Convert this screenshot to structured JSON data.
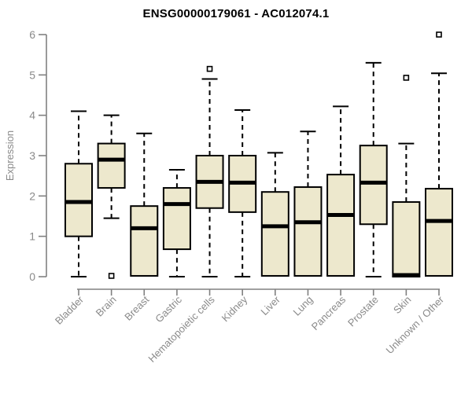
{
  "chart_data": {
    "type": "boxplot",
    "title": "ENSG00000179061 - AC012074.1",
    "ylabel": "Expression",
    "ylim": [
      0,
      6
    ],
    "yticks": [
      0,
      1,
      2,
      3,
      4,
      5,
      6
    ],
    "grid": false,
    "categories": [
      "Bladder",
      "Brain",
      "Breast",
      "Gastric",
      "Hematopoietic cells",
      "Kidney",
      "Liver",
      "Lung",
      "Pancreas",
      "Prostate",
      "Skin",
      "Unknown / Other"
    ],
    "series": [
      {
        "name": "Bladder",
        "low": 0,
        "q1": 1.0,
        "median": 1.85,
        "q3": 2.8,
        "high": 4.1,
        "outliers": []
      },
      {
        "name": "Brain",
        "low": 1.45,
        "q1": 2.2,
        "median": 2.9,
        "q3": 3.3,
        "high": 4.0,
        "outliers": [
          0.02
        ]
      },
      {
        "name": "Breast",
        "low": 0.02,
        "q1": 0.02,
        "median": 1.2,
        "q3": 1.75,
        "high": 3.55,
        "outliers": []
      },
      {
        "name": "Gastric",
        "low": 0,
        "q1": 0.68,
        "median": 1.8,
        "q3": 2.2,
        "high": 2.65,
        "outliers": []
      },
      {
        "name": "Hematopoietic cells",
        "low": 0,
        "q1": 1.7,
        "median": 2.35,
        "q3": 3.0,
        "high": 4.9,
        "outliers": [
          5.15
        ]
      },
      {
        "name": "Kidney",
        "low": 0,
        "q1": 1.6,
        "median": 2.33,
        "q3": 3.0,
        "high": 4.13,
        "outliers": []
      },
      {
        "name": "Liver",
        "low": 0.02,
        "q1": 0.02,
        "median": 1.25,
        "q3": 2.1,
        "high": 3.07,
        "outliers": []
      },
      {
        "name": "Lung",
        "low": 0.02,
        "q1": 0.02,
        "median": 1.35,
        "q3": 2.22,
        "high": 3.6,
        "outliers": []
      },
      {
        "name": "Pancreas",
        "low": 0.02,
        "q1": 0.02,
        "median": 1.53,
        "q3": 2.53,
        "high": 4.22,
        "outliers": []
      },
      {
        "name": "Prostate",
        "low": 0,
        "q1": 1.3,
        "median": 2.33,
        "q3": 3.25,
        "high": 5.3,
        "outliers": []
      },
      {
        "name": "Skin",
        "low": 0,
        "q1": 0,
        "median": 0.04,
        "q3": 1.85,
        "high": 3.3,
        "outliers": [
          4.93
        ]
      },
      {
        "name": "Unknown / Other",
        "low": 0.02,
        "q1": 0.02,
        "median": 1.38,
        "q3": 2.18,
        "high": 5.04,
        "outliers": [
          6.0
        ]
      }
    ],
    "colors": {
      "box_fill": "#EDE8CD",
      "box_border": "#000000",
      "median": "#000000",
      "whisker": "#000000",
      "axis": "#808080",
      "tick_label": "#8A8A8A",
      "title": "#000000",
      "background": "#FFFFFF"
    }
  }
}
